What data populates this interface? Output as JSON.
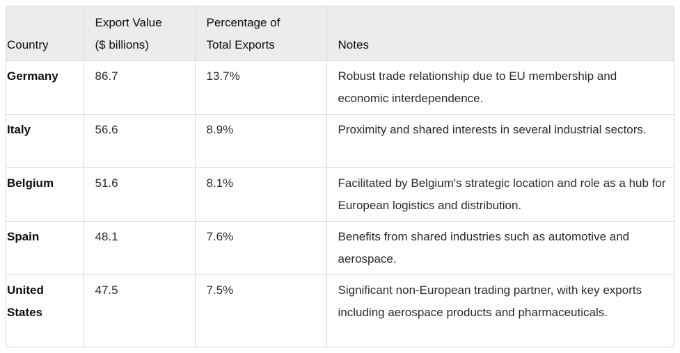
{
  "table": {
    "headers": {
      "country": "Country",
      "export_value_line1": "Export Value",
      "export_value_line2": "($ billions)",
      "percentage_line1": "Percentage of",
      "percentage_line2": "Total Exports",
      "notes": "Notes"
    },
    "rows": [
      {
        "country": "Germany",
        "export_value": "86.7",
        "percentage": "13.7%",
        "notes": "Robust trade relationship due to EU membership and economic interdependence."
      },
      {
        "country": "Italy",
        "export_value": "56.6",
        "percentage": "8.9%",
        "notes": "Proximity and shared interests in several industrial sectors."
      },
      {
        "country": "Belgium",
        "export_value": "51.6",
        "percentage": "8.1%",
        "notes": "Facilitated by Belgium's strategic location and role as a hub for European logistics and distribution."
      },
      {
        "country": "Spain",
        "export_value": "48.1",
        "percentage": "7.6%",
        "notes": "Benefits from shared industries such as automotive and aerospace."
      },
      {
        "country": "United States",
        "export_value": "47.5",
        "percentage": "7.5%",
        "notes": "Significant non-European trading partner, with key exports including aerospace products and pharmaceuticals."
      }
    ]
  }
}
